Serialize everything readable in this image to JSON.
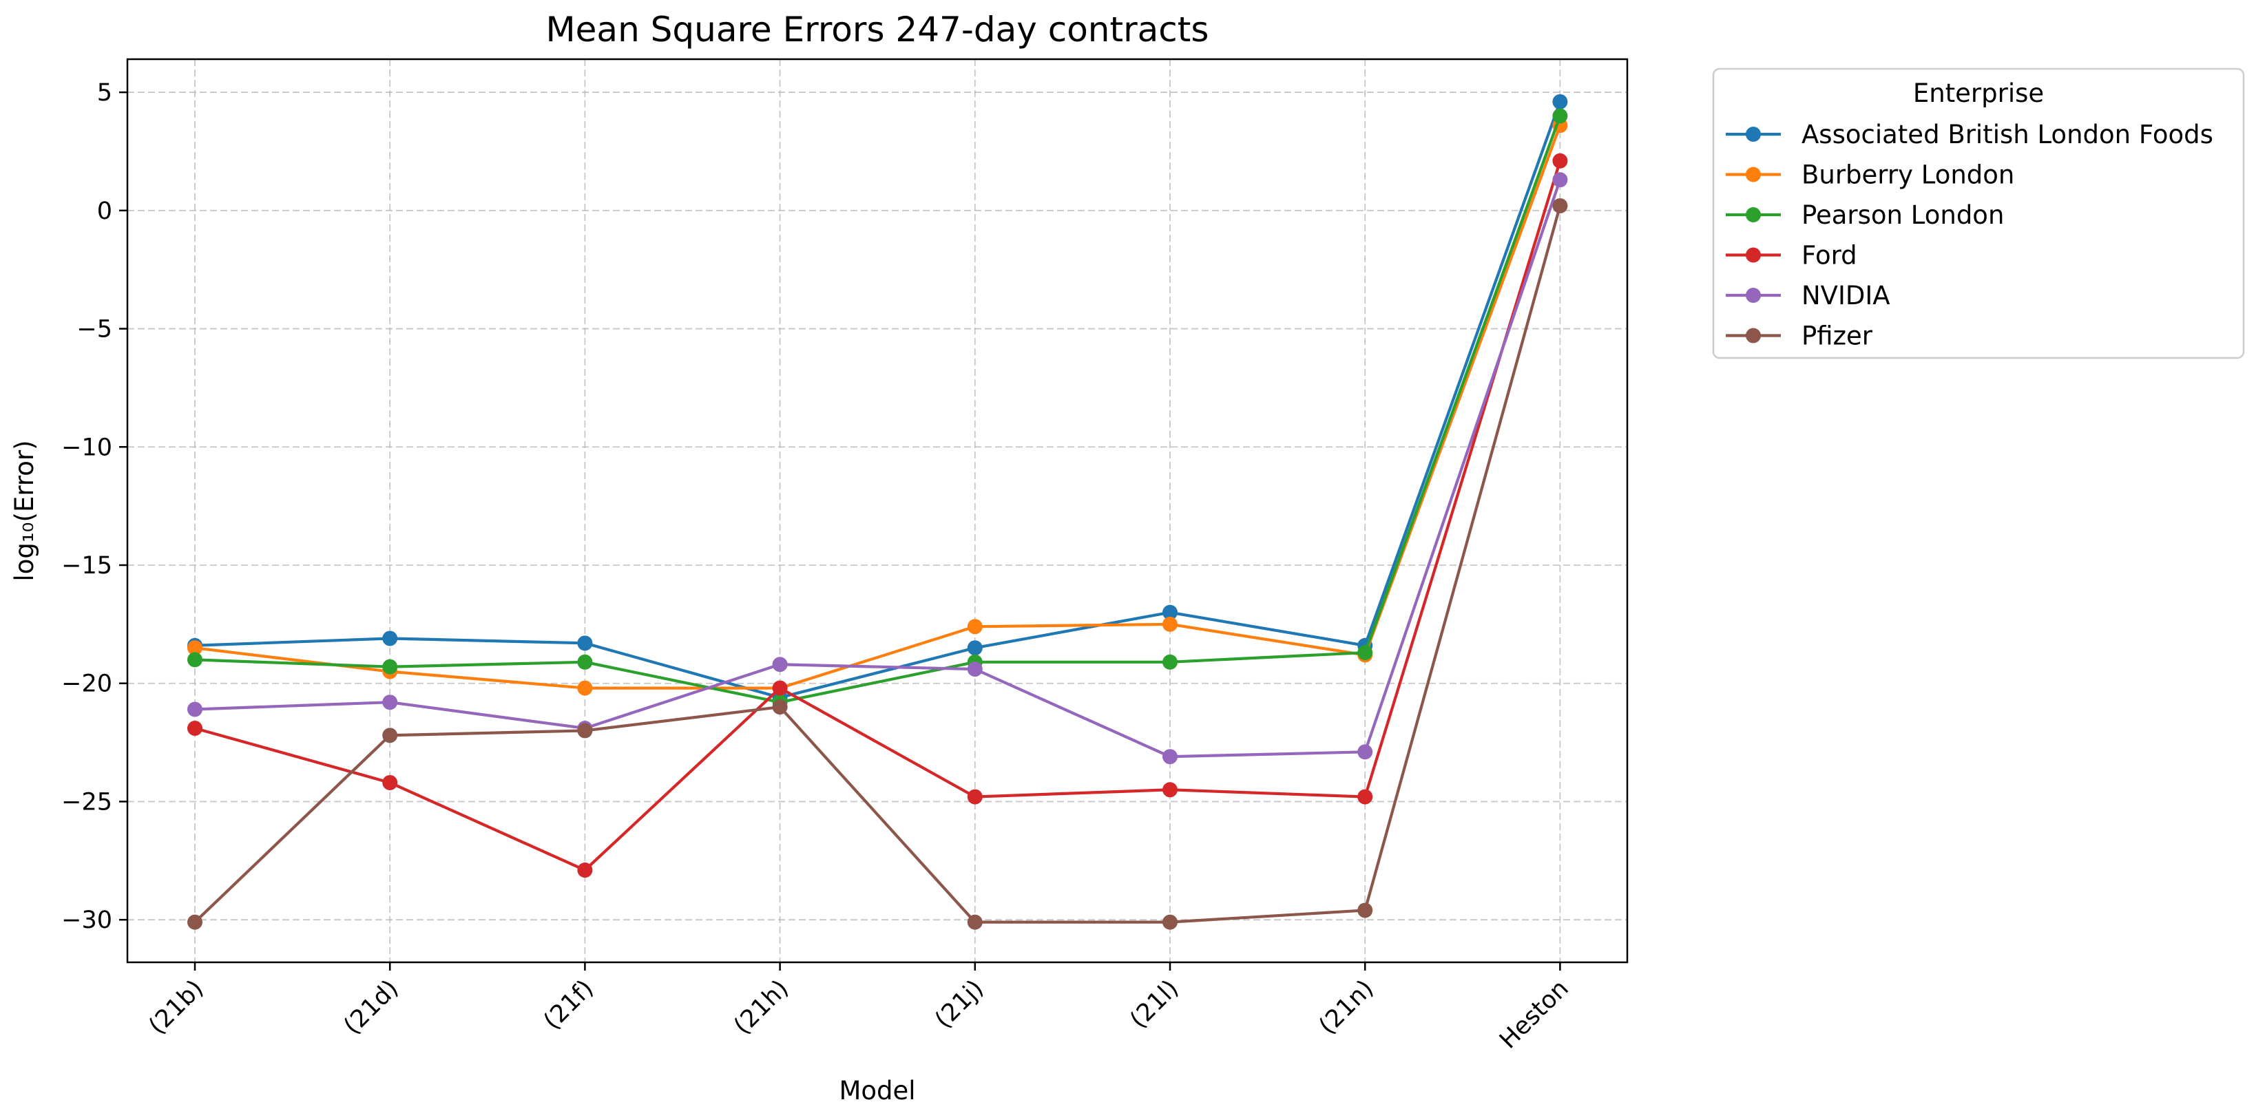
{
  "chart_data": {
    "type": "line",
    "title": "Mean Square Errors 247-day contracts",
    "xlabel": "Model",
    "ylabel": "log₁₀(Error)",
    "categories": [
      "(21b)",
      "(21d)",
      "(21f)",
      "(21h)",
      "(21j)",
      "(21l)",
      "(21n)",
      "Heston"
    ],
    "ylim": [
      -31.8,
      6.4
    ],
    "yticks": [
      5,
      0,
      -5,
      -10,
      -15,
      -20,
      -25,
      -30
    ],
    "ytick_labels": [
      "5",
      "0",
      "−5",
      "−10",
      "−15",
      "−20",
      "−25",
      "−30"
    ],
    "grid": true,
    "marker": "circle",
    "legend": {
      "title": "Enterprise",
      "placement": "outside-top-right"
    },
    "series": [
      {
        "name": "Associated British London Foods",
        "color": "#1f77b4",
        "values": [
          -18.4,
          -18.1,
          -18.3,
          -20.6,
          -18.5,
          -17.0,
          -18.4,
          4.6
        ]
      },
      {
        "name": "Burberry London",
        "color": "#ff7f0e",
        "values": [
          -18.5,
          -19.5,
          -20.2,
          -20.2,
          -17.6,
          -17.5,
          -18.8,
          3.6
        ]
      },
      {
        "name": "Pearson London",
        "color": "#2ca02c",
        "values": [
          -19.0,
          -19.3,
          -19.1,
          -20.8,
          -19.1,
          -19.1,
          -18.7,
          4.0
        ]
      },
      {
        "name": "Ford",
        "color": "#d62728",
        "values": [
          -21.9,
          -24.2,
          -27.9,
          -20.2,
          -24.8,
          -24.5,
          -24.8,
          2.1
        ]
      },
      {
        "name": "NVIDIA",
        "color": "#9467bd",
        "values": [
          -21.1,
          -20.8,
          -21.9,
          -19.2,
          -19.4,
          -23.1,
          -22.9,
          1.3
        ]
      },
      {
        "name": "Pfizer",
        "color": "#8c564b",
        "values": [
          -30.1,
          -22.2,
          -22.0,
          -21.0,
          -30.1,
          -30.1,
          -29.6,
          0.2
        ]
      }
    ]
  }
}
